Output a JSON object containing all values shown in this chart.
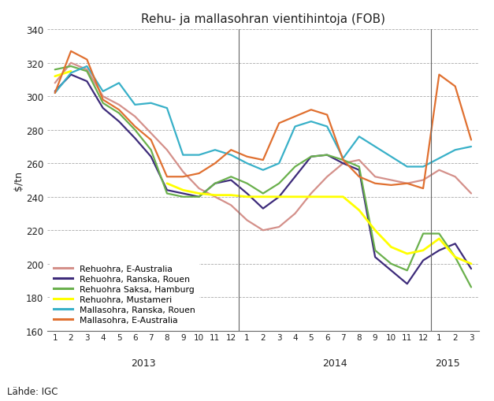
{
  "title": "Rehu- ja mallasohran vientihintoja (FOB)",
  "ylabel": "$/tn",
  "ylim": [
    160,
    340
  ],
  "yticks": [
    160,
    180,
    200,
    220,
    240,
    260,
    280,
    300,
    320,
    340
  ],
  "background_color": "#ffffff",
  "grid_color": "#aaaaaa",
  "source_text": "Lähde: IGC",
  "legend": [
    {
      "label": "Rehuohra, E-Australia",
      "color": "#d4908a"
    },
    {
      "label": "Rehuohra, Ranska, Rouen",
      "color": "#3d2b7a"
    },
    {
      "label": "Rehuohra Saksa, Hamburg",
      "color": "#6ab04c"
    },
    {
      "label": "Rehuohra, Mustameri",
      "color": "#ffff00"
    },
    {
      "label": "Mallasohra, Ranska, Rouen",
      "color": "#38b0c8"
    },
    {
      "label": "Mallasohra, E-Australia",
      "color": "#e07030"
    }
  ],
  "series": {
    "rehuohra_aus": [
      308,
      320,
      316,
      300,
      295,
      288,
      278,
      268,
      255,
      245,
      240,
      235,
      226,
      220,
      222,
      230,
      242,
      252,
      260,
      262,
      252,
      250,
      248,
      250,
      256,
      252,
      242
    ],
    "rehuohra_rouen": [
      303,
      313,
      309,
      293,
      285,
      275,
      264,
      244,
      242,
      240,
      248,
      250,
      242,
      233,
      240,
      252,
      264,
      265,
      260,
      256,
      204,
      196,
      188,
      202,
      208,
      212,
      197
    ],
    "rehuohra_hamburg": [
      316,
      318,
      315,
      296,
      290,
      280,
      268,
      242,
      240,
      240,
      248,
      252,
      248,
      242,
      248,
      258,
      264,
      265,
      262,
      258,
      208,
      200,
      196,
      218,
      218,
      204,
      186
    ],
    "rehuohra_mustameri": [
      312,
      315,
      null,
      null,
      null,
      null,
      null,
      248,
      244,
      242,
      241,
      241,
      240,
      240,
      240,
      240,
      240,
      240,
      240,
      232,
      220,
      210,
      206,
      208,
      215,
      204,
      200
    ],
    "mallasohra_rouen": [
      302,
      314,
      318,
      303,
      308,
      295,
      296,
      293,
      265,
      265,
      268,
      265,
      260,
      256,
      260,
      282,
      285,
      282,
      263,
      276,
      270,
      264,
      258,
      258,
      263,
      268,
      270
    ],
    "mallasohra_aus": [
      302,
      327,
      322,
      298,
      292,
      282,
      274,
      252,
      252,
      254,
      260,
      268,
      264,
      262,
      284,
      288,
      292,
      289,
      262,
      252,
      248,
      247,
      248,
      245,
      313,
      306,
      274
    ]
  }
}
